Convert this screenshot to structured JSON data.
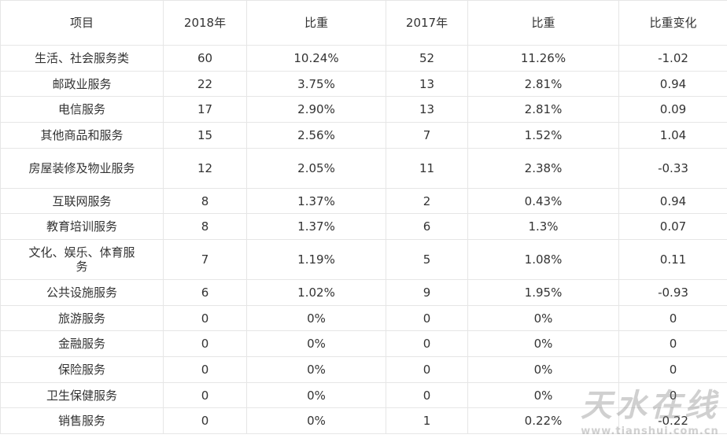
{
  "table": {
    "header": [
      "项目",
      "2018年",
      "比重",
      "2017年",
      "比重",
      "比重变化"
    ],
    "rows": [
      [
        "生活、社会服务类",
        "60",
        "10.24%",
        "52",
        "11.26%",
        "-1.02"
      ],
      [
        "邮政业服务",
        "22",
        "3.75%",
        "13",
        "2.81%",
        "0.94"
      ],
      [
        "电信服务",
        "17",
        "2.90%",
        "13",
        "2.81%",
        "0.09"
      ],
      [
        "其他商品和服务",
        "15",
        "2.56%",
        "7",
        "1.52%",
        "1.04"
      ],
      [
        "房屋装修及物业服务",
        "12",
        "2.05%",
        "11",
        "2.38%",
        "-0.33"
      ],
      [
        "互联网服务",
        "8",
        "1.37%",
        "2",
        "0.43%",
        "0.94"
      ],
      [
        "教育培训服务",
        "8",
        "1.37%",
        "6",
        "1.3%",
        "0.07"
      ],
      [
        "文化、娱乐、体育服务",
        "7",
        "1.19%",
        "5",
        "1.08%",
        "0.11"
      ],
      [
        "公共设施服务",
        "6",
        "1.02%",
        "9",
        "1.95%",
        "-0.93"
      ],
      [
        "旅游服务",
        "0",
        "0%",
        "0",
        "0%",
        "0"
      ],
      [
        "金融服务",
        "0",
        "0%",
        "0",
        "0%",
        "0"
      ],
      [
        "保险服务",
        "0",
        "0%",
        "0",
        "0%",
        "0"
      ],
      [
        "卫生保健服务",
        "0",
        "0%",
        "0",
        "0%",
        "0"
      ],
      [
        "销售服务",
        "0",
        "0%",
        "1",
        "0.22%",
        "-0.22"
      ]
    ]
  },
  "watermark": {
    "logo": "天水在线",
    "url": "www.tianshui.com.cn"
  }
}
